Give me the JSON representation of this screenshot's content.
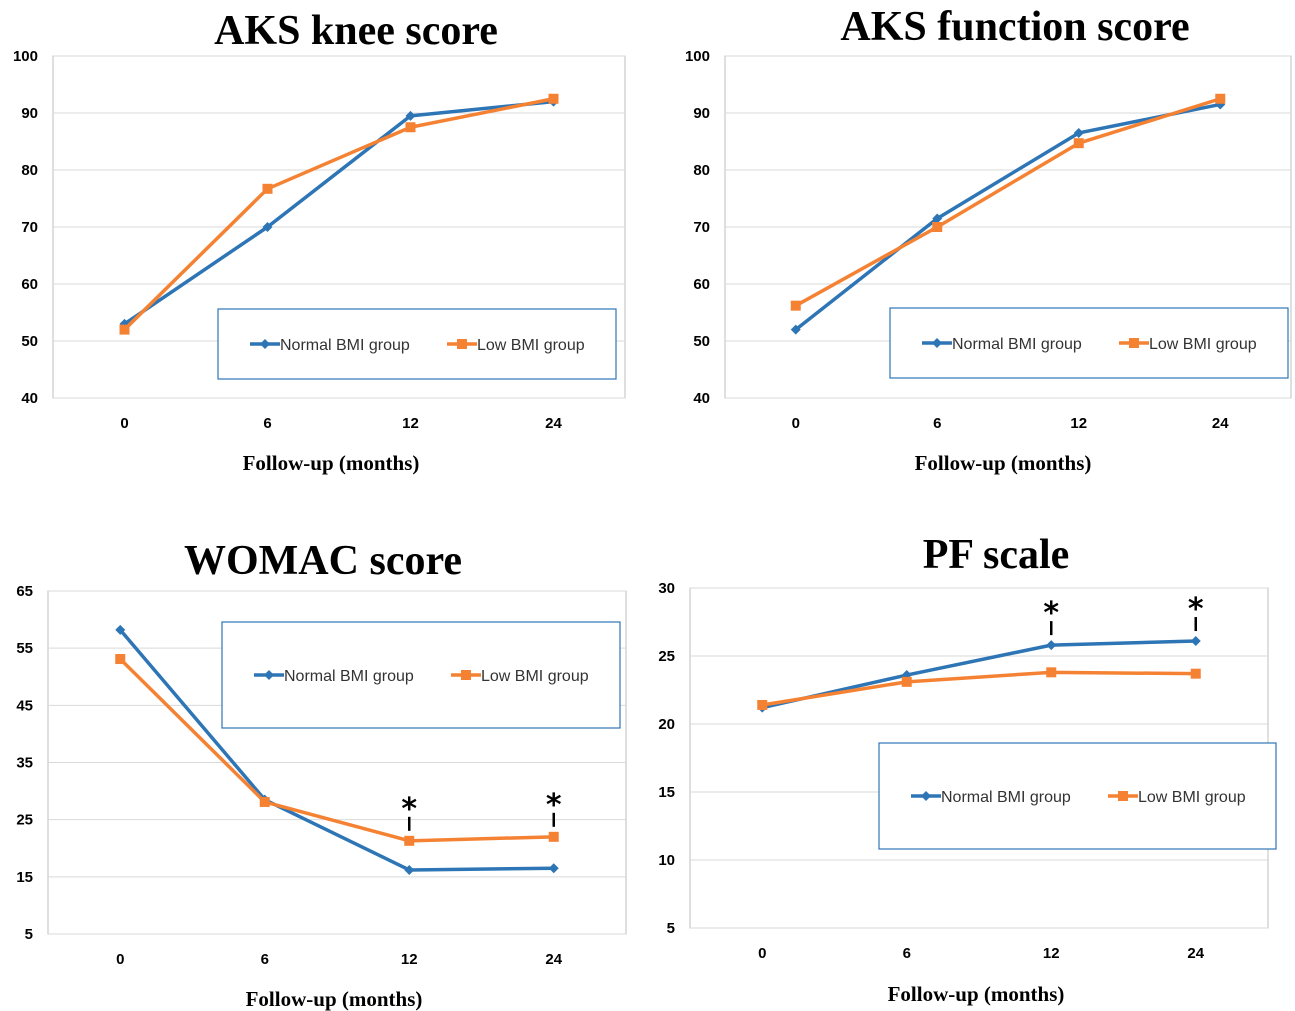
{
  "chart_data": [
    {
      "type": "line",
      "title": "AKS knee score",
      "xlabel": "Follow-up (months)",
      "ylabel": "",
      "categories": [
        "0",
        "6",
        "12",
        "24"
      ],
      "ylim": [
        40,
        100
      ],
      "yticks": [
        "40",
        "50",
        "60",
        "70",
        "80",
        "90",
        "100"
      ],
      "grid": true,
      "legend_position": "lower-right",
      "series": [
        {
          "name": "Normal BMI group",
          "color": "#2e75b6",
          "marker": "diamond",
          "values": [
            53.0,
            70.0,
            89.5,
            92.0
          ]
        },
        {
          "name": "Low BMI group",
          "color": "#f58233",
          "marker": "square",
          "values": [
            52.0,
            76.7,
            87.5,
            92.5
          ]
        }
      ],
      "annotations": []
    },
    {
      "type": "line",
      "title": "AKS function score",
      "xlabel": "Follow-up (months)",
      "ylabel": "",
      "categories": [
        "0",
        "6",
        "12",
        "24"
      ],
      "ylim": [
        40,
        100
      ],
      "yticks": [
        "40",
        "50",
        "60",
        "70",
        "80",
        "90",
        "100"
      ],
      "grid": true,
      "legend_position": "lower-right",
      "series": [
        {
          "name": "Normal BMI group",
          "color": "#2e75b6",
          "marker": "diamond",
          "values": [
            52.0,
            71.5,
            86.5,
            91.5
          ]
        },
        {
          "name": "Low BMI group",
          "color": "#f58233",
          "marker": "square",
          "values": [
            56.2,
            70.0,
            84.7,
            92.5
          ]
        }
      ],
      "annotations": []
    },
    {
      "type": "line",
      "title": "WOMAC score",
      "xlabel": "Follow-up (months)",
      "ylabel": "",
      "categories": [
        "0",
        "6",
        "12",
        "24"
      ],
      "ylim": [
        5,
        65
      ],
      "yticks": [
        "5",
        "15",
        "25",
        "35",
        "45",
        "55",
        "65"
      ],
      "grid": true,
      "legend_position": "upper-right",
      "series": [
        {
          "name": "Normal BMI group",
          "color": "#2e75b6",
          "marker": "diamond",
          "values": [
            58.2,
            28.5,
            16.2,
            16.5
          ]
        },
        {
          "name": "Low BMI group",
          "color": "#f58233",
          "marker": "square",
          "values": [
            53.1,
            28.1,
            21.3,
            22.0
          ]
        }
      ],
      "annotations": [
        {
          "text": "*",
          "category": "12"
        },
        {
          "text": "*",
          "category": "24"
        }
      ]
    },
    {
      "type": "line",
      "title": "PF scale",
      "xlabel": "Follow-up (months)",
      "ylabel": "",
      "categories": [
        "0",
        "6",
        "12",
        "24"
      ],
      "ylim": [
        5,
        30
      ],
      "yticks": [
        "5",
        "10",
        "15",
        "20",
        "25",
        "30"
      ],
      "grid": true,
      "legend_position": "lower-right",
      "series": [
        {
          "name": "Normal BMI group",
          "color": "#2e75b6",
          "marker": "diamond",
          "values": [
            21.2,
            23.6,
            25.8,
            26.1
          ]
        },
        {
          "name": "Low BMI group",
          "color": "#f58233",
          "marker": "square",
          "values": [
            21.4,
            23.1,
            23.8,
            23.7
          ]
        }
      ],
      "annotations": [
        {
          "text": "*",
          "category": "12"
        },
        {
          "text": "*",
          "category": "24"
        }
      ]
    }
  ]
}
